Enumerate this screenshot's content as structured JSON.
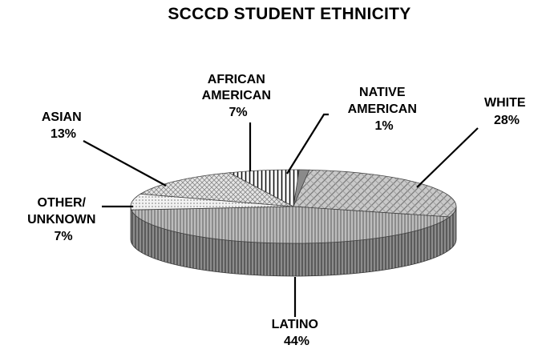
{
  "chart_data": {
    "type": "pie",
    "title": "SCCCD STUDENT ETHNICITY",
    "three_d": true,
    "slices": [
      {
        "key": "native",
        "label_lines": [
          "NATIVE",
          "AMERICAN"
        ],
        "percent_label": "1%",
        "value": 1
      },
      {
        "key": "white",
        "label_lines": [
          "WHITE"
        ],
        "percent_label": "28%",
        "value": 28
      },
      {
        "key": "latino",
        "label_lines": [
          "LATINO"
        ],
        "percent_label": "44%",
        "value": 44
      },
      {
        "key": "other",
        "label_lines": [
          "OTHER/",
          "UNKNOWN"
        ],
        "percent_label": "7%",
        "value": 7
      },
      {
        "key": "asian",
        "label_lines": [
          "ASIAN"
        ],
        "percent_label": "13%",
        "value": 13
      },
      {
        "key": "african",
        "label_lines": [
          "AFRICAN",
          "AMERICAN"
        ],
        "percent_label": "7%",
        "value": 7
      }
    ],
    "legend": "none",
    "labels": "outside-with-leader-lines"
  }
}
